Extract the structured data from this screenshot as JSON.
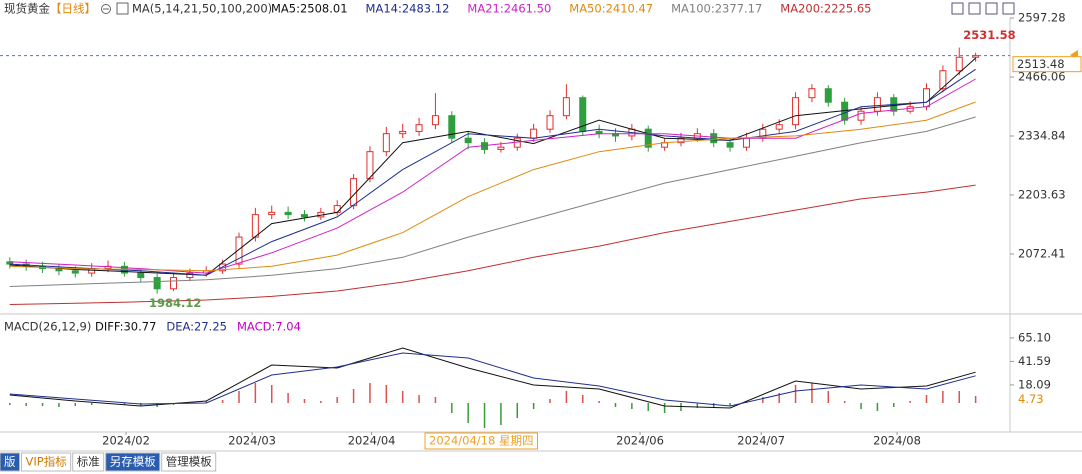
{
  "header": {
    "symbol": "现货黄金",
    "period": "【日线】",
    "indicator": "MA(5,14,21,50,100,200)"
  },
  "toolbar": {
    "tabs": [
      "版",
      "VIP指标",
      "标准",
      "另存模板",
      "管理模板"
    ]
  },
  "chart_data": [
    {
      "type": "candlestick",
      "open": [
        2055,
        2050,
        2045,
        2040,
        2035,
        2030,
        2040,
        2045,
        2030,
        2020,
        1995,
        2020,
        2030,
        2035,
        2050,
        2110,
        2160,
        2165,
        2160,
        2155,
        2165,
        2180,
        2240,
        2300,
        2340,
        2345,
        2360,
        2380,
        2330,
        2320,
        2305,
        2310,
        2330,
        2350,
        2380,
        2420,
        2345,
        2340,
        2335,
        2350,
        2310,
        2320,
        2330,
        2340,
        2320,
        2310,
        2330,
        2350,
        2360,
        2420,
        2440,
        2410,
        2370,
        2390,
        2420,
        2390,
        2400,
        2440,
        2480,
        2510
      ],
      "high": [
        2065,
        2060,
        2055,
        2050,
        2045,
        2052,
        2058,
        2055,
        2040,
        2028,
        2030,
        2040,
        2045,
        2060,
        2120,
        2175,
        2180,
        2178,
        2170,
        2175,
        2192,
        2250,
        2312,
        2355,
        2362,
        2375,
        2430,
        2390,
        2345,
        2330,
        2322,
        2340,
        2362,
        2392,
        2450,
        2425,
        2360,
        2352,
        2362,
        2358,
        2330,
        2342,
        2352,
        2350,
        2330,
        2342,
        2362,
        2372,
        2432,
        2450,
        2448,
        2420,
        2400,
        2432,
        2428,
        2412,
        2452,
        2492,
        2531.58,
        2520
      ],
      "low": [
        2040,
        2035,
        2030,
        2025,
        2020,
        2022,
        2032,
        2022,
        2010,
        1984.12,
        1990,
        2012,
        2022,
        2028,
        2042,
        2100,
        2150,
        2150,
        2145,
        2148,
        2158,
        2172,
        2232,
        2290,
        2330,
        2335,
        2350,
        2320,
        2305,
        2295,
        2298,
        2302,
        2322,
        2342,
        2372,
        2335,
        2330,
        2322,
        2325,
        2300,
        2302,
        2312,
        2322,
        2310,
        2300,
        2302,
        2322,
        2342,
        2350,
        2410,
        2400,
        2360,
        2360,
        2380,
        2380,
        2385,
        2392,
        2432,
        2470,
        2500
      ],
      "close": [
        2050,
        2045,
        2040,
        2035,
        2030,
        2040,
        2045,
        2030,
        2020,
        1995,
        2020,
        2030,
        2035,
        2050,
        2110,
        2160,
        2165,
        2160,
        2155,
        2165,
        2180,
        2240,
        2300,
        2340,
        2345,
        2360,
        2380,
        2330,
        2320,
        2305,
        2310,
        2330,
        2350,
        2380,
        2420,
        2345,
        2340,
        2335,
        2350,
        2310,
        2320,
        2330,
        2340,
        2320,
        2310,
        2330,
        2350,
        2360,
        2420,
        2440,
        2410,
        2370,
        2390,
        2420,
        2390,
        2400,
        2440,
        2480,
        2510,
        2513.48
      ],
      "up_color": "#e0302b",
      "down_color": "#2e9e3e",
      "xlim": [
        -0.6,
        61.1
      ],
      "ylim": [
        1947.84,
        2597.28
      ],
      "yticks": [
        2072.41,
        2203.63,
        2334.84,
        2466.06,
        2597.28
      ],
      "xticks": [
        {
          "value": 7.1,
          "label": "2024/02"
        },
        {
          "value": 14.8,
          "label": "2024/03"
        },
        {
          "value": 22.1,
          "label": "2024/04"
        },
        {
          "value": 38.5,
          "label": "2024/06"
        },
        {
          "value": 45.9,
          "label": "2024/07"
        },
        {
          "value": 54.2,
          "label": "2024/08"
        }
      ],
      "ma_x": [
        0,
        4,
        8,
        12,
        16,
        20,
        24,
        28,
        32,
        36,
        40,
        44,
        48,
        52,
        56,
        59
      ],
      "series": [
        {
          "label": "MA5:2508.01",
          "color": "#111111",
          "values": [
            2048,
            2038,
            2032,
            2025,
            2140,
            2165,
            2320,
            2345,
            2318,
            2370,
            2330,
            2325,
            2380,
            2395,
            2410,
            2508.01
          ]
        },
        {
          "label": "MA14:2483.12",
          "color": "#1f2f8f",
          "values": [
            2050,
            2042,
            2035,
            2025,
            2100,
            2155,
            2260,
            2340,
            2330,
            2350,
            2335,
            2325,
            2345,
            2400,
            2410,
            2483.12
          ]
        },
        {
          "label": "MA21:2461.50",
          "color": "#d020c8",
          "values": [
            2055,
            2048,
            2040,
            2030,
            2075,
            2130,
            2210,
            2310,
            2325,
            2340,
            2340,
            2330,
            2330,
            2385,
            2400,
            2461.5
          ]
        },
        {
          "label": "MA50:2410.47",
          "color": "#e08a10",
          "values": [
            2045,
            2040,
            2038,
            2035,
            2045,
            2070,
            2120,
            2200,
            2260,
            2300,
            2320,
            2330,
            2335,
            2350,
            2370,
            2410.47
          ]
        },
        {
          "label": "MA100:2377.17",
          "color": "#808080",
          "values": [
            2000,
            2005,
            2010,
            2015,
            2025,
            2040,
            2065,
            2110,
            2150,
            2190,
            2230,
            2260,
            2290,
            2320,
            2345,
            2377.17
          ]
        },
        {
          "label": "MA200:2225.65",
          "color": "#c03030",
          "values": [
            1960,
            1963,
            1966,
            1970,
            1978,
            1990,
            2010,
            2035,
            2065,
            2090,
            2120,
            2145,
            2170,
            2195,
            2210,
            2225.65
          ]
        }
      ],
      "cursor": {
        "x": 28.8,
        "label": "2024/04/18 星期四",
        "price": 2513.48,
        "color": "#f0a020"
      }
    },
    {
      "type": "macd",
      "title": "MACD(26,12,9)",
      "xlim": [
        -0.6,
        61.1
      ],
      "ylim": [
        -29,
        85
      ],
      "yticks": [
        18.09,
        41.59,
        {
          "value": 65.1,
          "label": "65.10"
        }
      ],
      "x": [
        0,
        4,
        8,
        12,
        16,
        20,
        24,
        28,
        32,
        36,
        40,
        44,
        48,
        52,
        56,
        59
      ],
      "series": [
        {
          "label": "DIFF:30.77",
          "color": "#111111",
          "values": [
            8,
            2,
            -3,
            2,
            38,
            35,
            55,
            35,
            18,
            14,
            -3,
            -5,
            22,
            14,
            17,
            30.77
          ]
        },
        {
          "label": "DEA:27.25",
          "color": "#1f2f8f",
          "values": [
            9,
            4,
            -1,
            0,
            28,
            36,
            50,
            45,
            25,
            17,
            3,
            -3,
            12,
            18,
            14,
            27.25
          ]
        }
      ],
      "histogram": {
        "label": "MACD:7.04",
        "color": "#c000c0",
        "up_color": "#d9534f",
        "down_color": "#3a9a3a",
        "values": [
          -2,
          -3,
          -3,
          -4,
          -3,
          -2,
          -1,
          -2,
          -3,
          -4,
          -2,
          1,
          2,
          3,
          12,
          20,
          18,
          10,
          4,
          2,
          6,
          14,
          20,
          18,
          12,
          8,
          6,
          -10,
          -20,
          -25,
          -22,
          -15,
          -6,
          4,
          12,
          8,
          2,
          -4,
          -6,
          -8,
          -10,
          -8,
          -5,
          -4,
          -3,
          2,
          6,
          10,
          18,
          20,
          12,
          2,
          -6,
          -8,
          -4,
          2,
          8,
          12,
          12,
          7.04
        ]
      },
      "cursor": {
        "value": 4.73,
        "color": "#e08a00"
      }
    }
  ]
}
